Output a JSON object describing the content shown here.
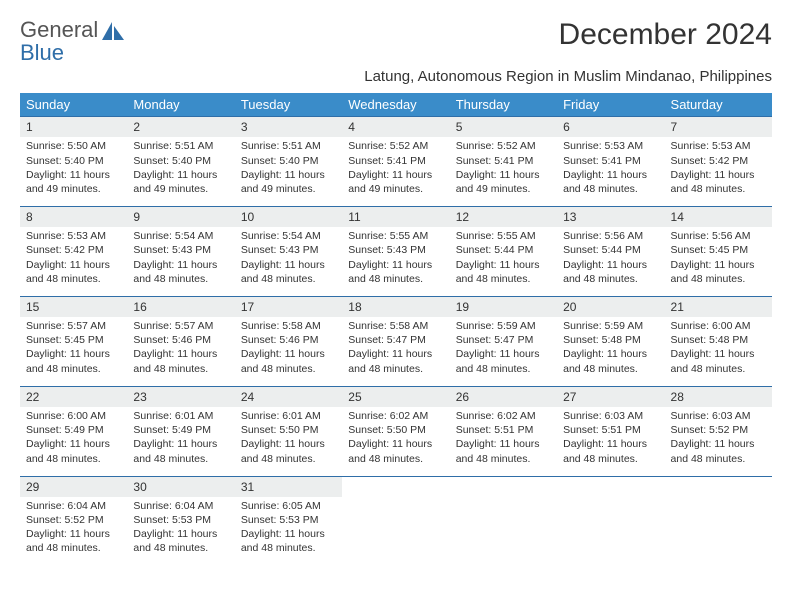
{
  "logo": {
    "line1": "General",
    "line2": "Blue"
  },
  "title": "December 2024",
  "location": "Latung, Autonomous Region in Muslim Mindanao, Philippines",
  "colors": {
    "header_bg": "#3a8cc9",
    "header_text": "#ffffff",
    "rule": "#2f6ea8",
    "daynum_bg": "#eceeee",
    "text": "#333333",
    "logo_blue": "#2f6ea8",
    "logo_gray": "#555555"
  },
  "day_headers": [
    "Sunday",
    "Monday",
    "Tuesday",
    "Wednesday",
    "Thursday",
    "Friday",
    "Saturday"
  ],
  "weeks": [
    [
      {
        "n": "1",
        "sunrise": "5:50 AM",
        "sunset": "5:40 PM",
        "daylight": "11 hours and 49 minutes."
      },
      {
        "n": "2",
        "sunrise": "5:51 AM",
        "sunset": "5:40 PM",
        "daylight": "11 hours and 49 minutes."
      },
      {
        "n": "3",
        "sunrise": "5:51 AM",
        "sunset": "5:40 PM",
        "daylight": "11 hours and 49 minutes."
      },
      {
        "n": "4",
        "sunrise": "5:52 AM",
        "sunset": "5:41 PM",
        "daylight": "11 hours and 49 minutes."
      },
      {
        "n": "5",
        "sunrise": "5:52 AM",
        "sunset": "5:41 PM",
        "daylight": "11 hours and 49 minutes."
      },
      {
        "n": "6",
        "sunrise": "5:53 AM",
        "sunset": "5:41 PM",
        "daylight": "11 hours and 48 minutes."
      },
      {
        "n": "7",
        "sunrise": "5:53 AM",
        "sunset": "5:42 PM",
        "daylight": "11 hours and 48 minutes."
      }
    ],
    [
      {
        "n": "8",
        "sunrise": "5:53 AM",
        "sunset": "5:42 PM",
        "daylight": "11 hours and 48 minutes."
      },
      {
        "n": "9",
        "sunrise": "5:54 AM",
        "sunset": "5:43 PM",
        "daylight": "11 hours and 48 minutes."
      },
      {
        "n": "10",
        "sunrise": "5:54 AM",
        "sunset": "5:43 PM",
        "daylight": "11 hours and 48 minutes."
      },
      {
        "n": "11",
        "sunrise": "5:55 AM",
        "sunset": "5:43 PM",
        "daylight": "11 hours and 48 minutes."
      },
      {
        "n": "12",
        "sunrise": "5:55 AM",
        "sunset": "5:44 PM",
        "daylight": "11 hours and 48 minutes."
      },
      {
        "n": "13",
        "sunrise": "5:56 AM",
        "sunset": "5:44 PM",
        "daylight": "11 hours and 48 minutes."
      },
      {
        "n": "14",
        "sunrise": "5:56 AM",
        "sunset": "5:45 PM",
        "daylight": "11 hours and 48 minutes."
      }
    ],
    [
      {
        "n": "15",
        "sunrise": "5:57 AM",
        "sunset": "5:45 PM",
        "daylight": "11 hours and 48 minutes."
      },
      {
        "n": "16",
        "sunrise": "5:57 AM",
        "sunset": "5:46 PM",
        "daylight": "11 hours and 48 minutes."
      },
      {
        "n": "17",
        "sunrise": "5:58 AM",
        "sunset": "5:46 PM",
        "daylight": "11 hours and 48 minutes."
      },
      {
        "n": "18",
        "sunrise": "5:58 AM",
        "sunset": "5:47 PM",
        "daylight": "11 hours and 48 minutes."
      },
      {
        "n": "19",
        "sunrise": "5:59 AM",
        "sunset": "5:47 PM",
        "daylight": "11 hours and 48 minutes."
      },
      {
        "n": "20",
        "sunrise": "5:59 AM",
        "sunset": "5:48 PM",
        "daylight": "11 hours and 48 minutes."
      },
      {
        "n": "21",
        "sunrise": "6:00 AM",
        "sunset": "5:48 PM",
        "daylight": "11 hours and 48 minutes."
      }
    ],
    [
      {
        "n": "22",
        "sunrise": "6:00 AM",
        "sunset": "5:49 PM",
        "daylight": "11 hours and 48 minutes."
      },
      {
        "n": "23",
        "sunrise": "6:01 AM",
        "sunset": "5:49 PM",
        "daylight": "11 hours and 48 minutes."
      },
      {
        "n": "24",
        "sunrise": "6:01 AM",
        "sunset": "5:50 PM",
        "daylight": "11 hours and 48 minutes."
      },
      {
        "n": "25",
        "sunrise": "6:02 AM",
        "sunset": "5:50 PM",
        "daylight": "11 hours and 48 minutes."
      },
      {
        "n": "26",
        "sunrise": "6:02 AM",
        "sunset": "5:51 PM",
        "daylight": "11 hours and 48 minutes."
      },
      {
        "n": "27",
        "sunrise": "6:03 AM",
        "sunset": "5:51 PM",
        "daylight": "11 hours and 48 minutes."
      },
      {
        "n": "28",
        "sunrise": "6:03 AM",
        "sunset": "5:52 PM",
        "daylight": "11 hours and 48 minutes."
      }
    ],
    [
      {
        "n": "29",
        "sunrise": "6:04 AM",
        "sunset": "5:52 PM",
        "daylight": "11 hours and 48 minutes."
      },
      {
        "n": "30",
        "sunrise": "6:04 AM",
        "sunset": "5:53 PM",
        "daylight": "11 hours and 48 minutes."
      },
      {
        "n": "31",
        "sunrise": "6:05 AM",
        "sunset": "5:53 PM",
        "daylight": "11 hours and 48 minutes."
      },
      null,
      null,
      null,
      null
    ]
  ],
  "labels": {
    "sunrise": "Sunrise: ",
    "sunset": "Sunset: ",
    "daylight": "Daylight: "
  }
}
